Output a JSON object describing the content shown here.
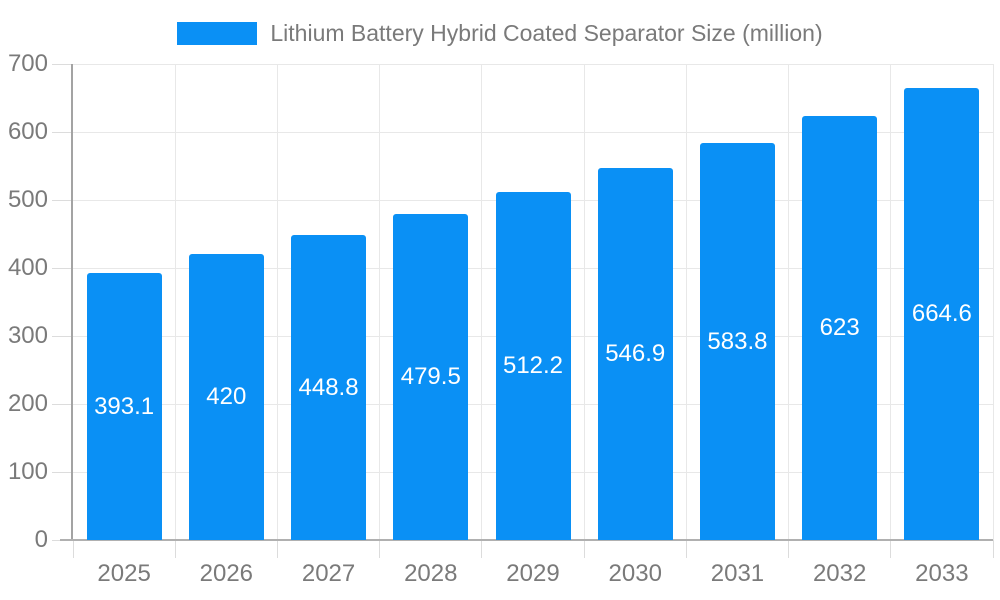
{
  "chart_data": {
    "type": "bar",
    "title": "Lithium Battery Hybrid Coated Separator Size (million)",
    "categories": [
      "2025",
      "2026",
      "2027",
      "2028",
      "2029",
      "2030",
      "2031",
      "2032",
      "2033"
    ],
    "values": [
      393.1,
      420,
      448.8,
      479.5,
      512.2,
      546.9,
      583.8,
      623,
      664.6
    ],
    "value_labels": [
      "393.1",
      "420",
      "448.8",
      "479.5",
      "512.2",
      "546.9",
      "583.8",
      "623",
      "664.6"
    ],
    "xlabel": "",
    "ylabel": "",
    "ylim": [
      0,
      700
    ],
    "yticks": [
      0,
      100,
      200,
      300,
      400,
      500,
      600,
      700
    ],
    "grid": true,
    "legend_position": "top-center",
    "bar_color": "#0a90f5",
    "bar_label_color": "#ffffff",
    "axis_text_color": "#7a7a7a",
    "gridline_color": "#e8e8e8",
    "axis_line_color": "#a3a3a3"
  }
}
